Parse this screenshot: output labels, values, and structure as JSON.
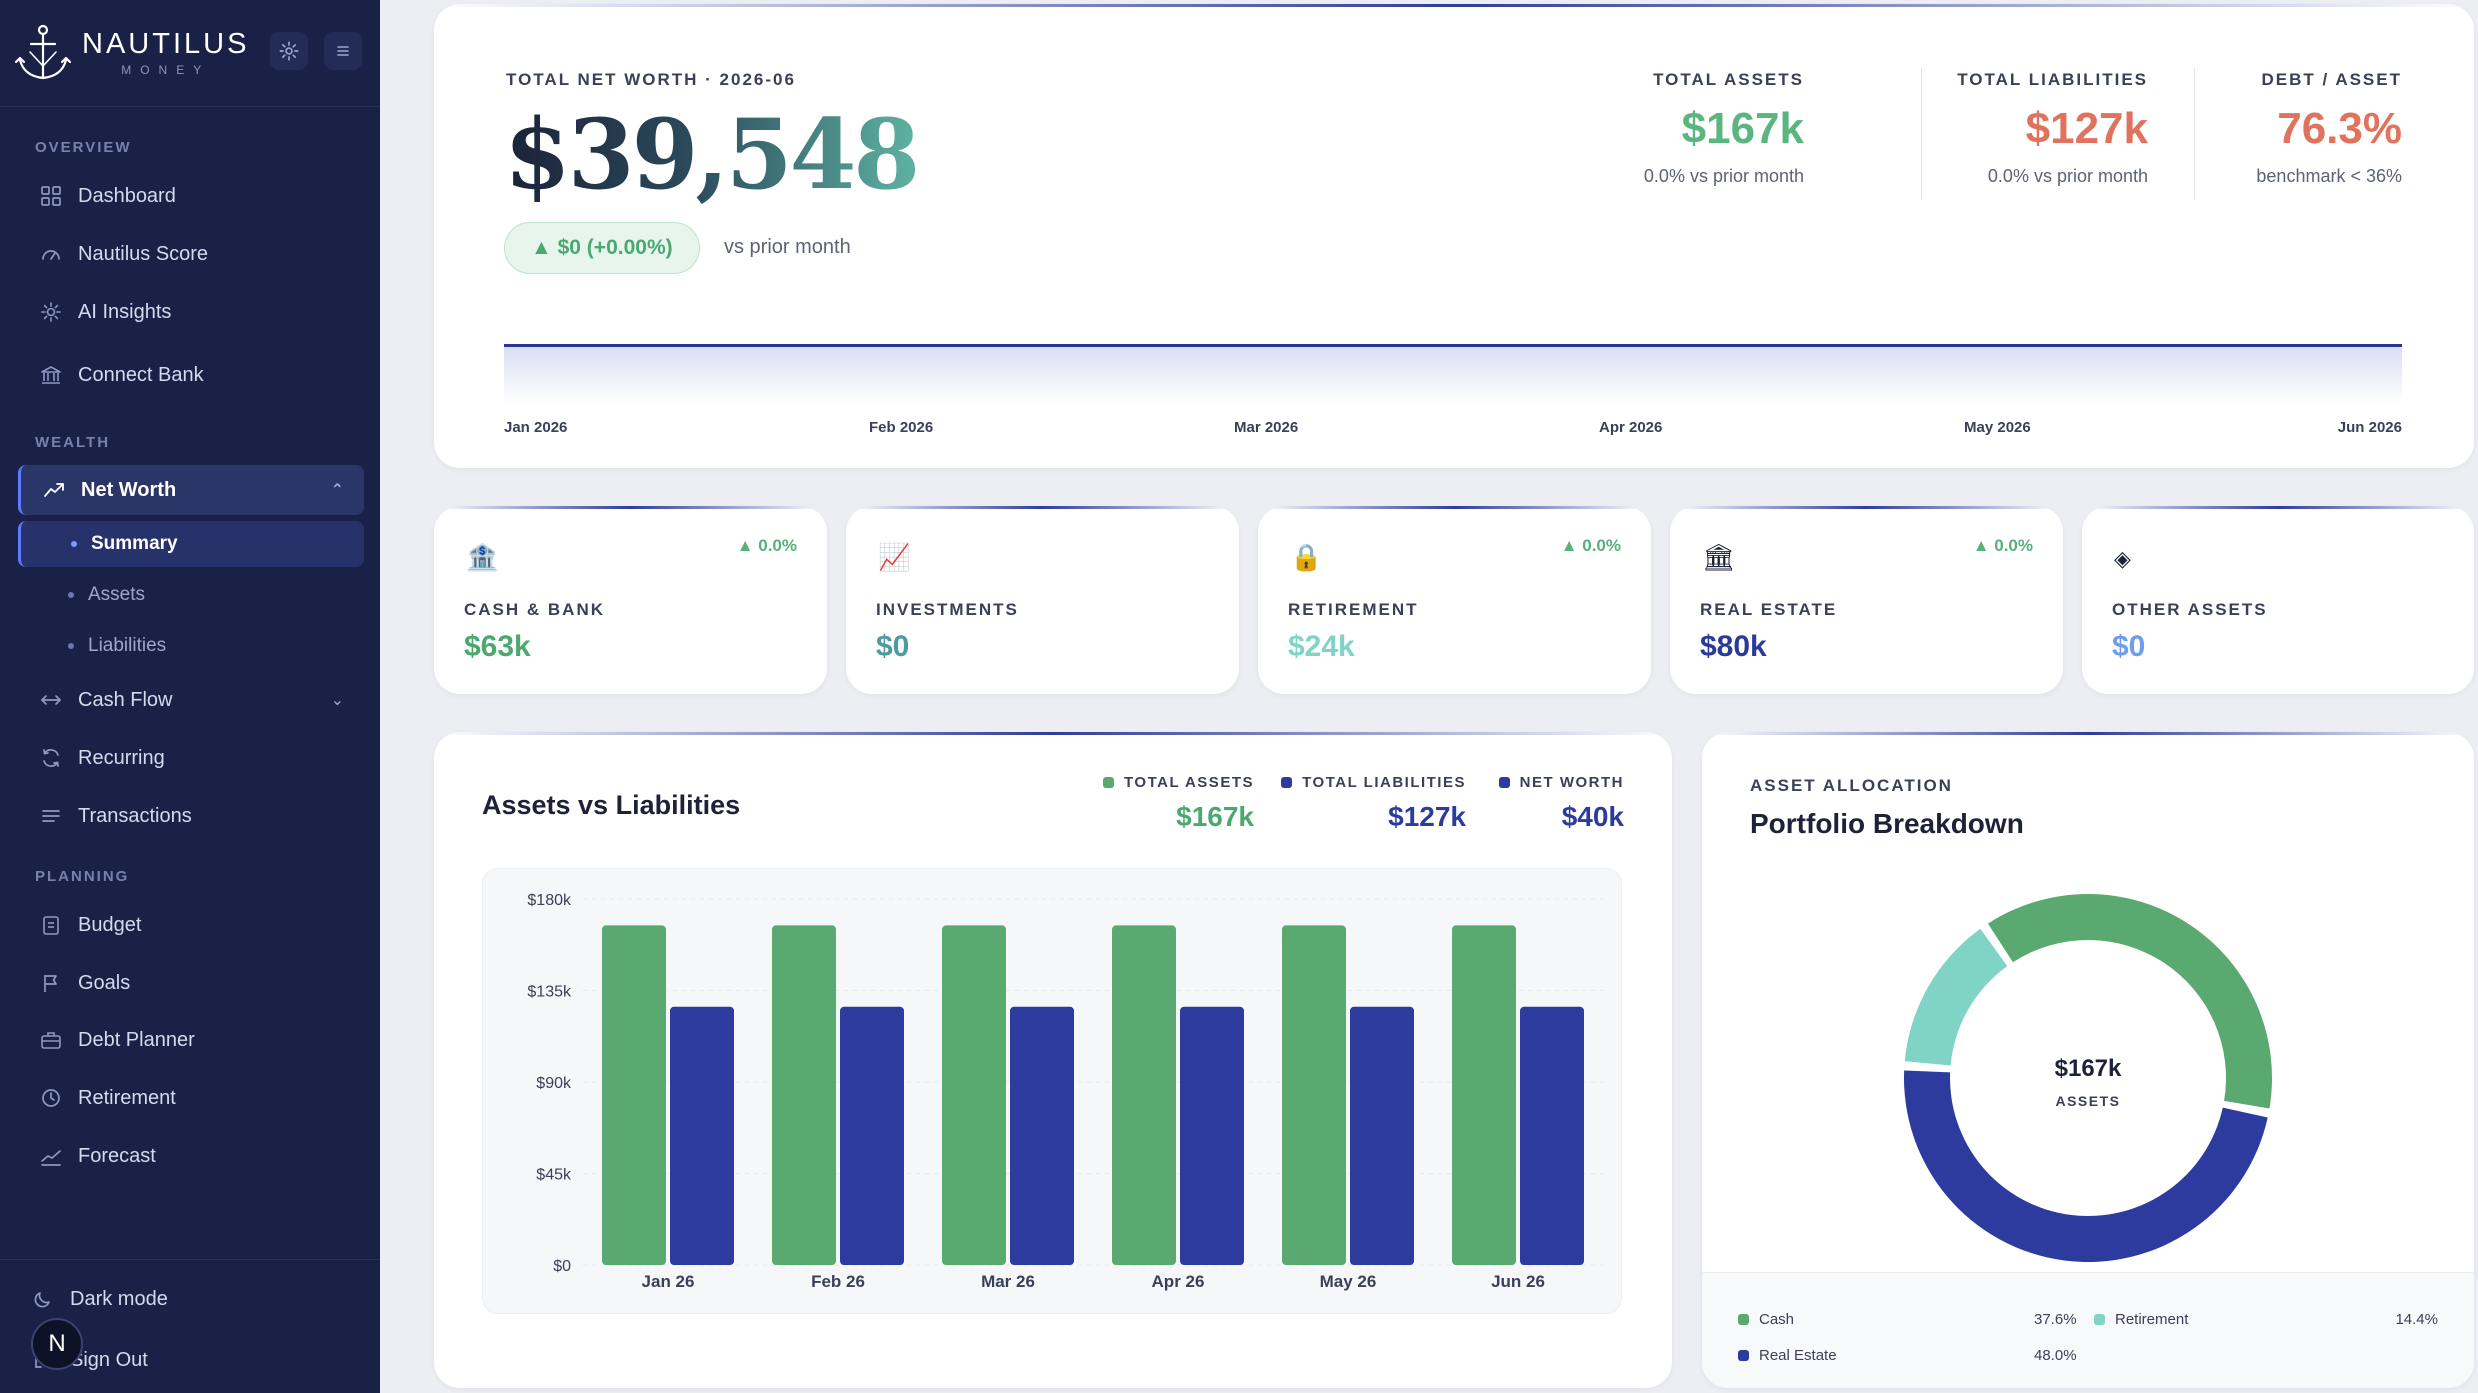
{
  "brand": {
    "name": "NAUTILUS",
    "sub": "MONEY"
  },
  "sidebar": {
    "sections": {
      "overview": "OVERVIEW",
      "wealth": "WEALTH",
      "planning": "PLANNING"
    },
    "items": {
      "dashboard": "Dashboard",
      "score": "Nautilus Score",
      "insights": "AI Insights",
      "connect": "Connect Bank",
      "networth": "Net Worth",
      "summary": "Summary",
      "assets": "Assets",
      "liabilities": "Liabilities",
      "cashflow": "Cash Flow",
      "recurring": "Recurring",
      "transactions": "Transactions",
      "budget": "Budget",
      "goals": "Goals",
      "debt": "Debt Planner",
      "retirement": "Retirement",
      "forecast": "Forecast"
    },
    "dark_mode": "Dark mode",
    "sign_out": "Sign Out",
    "avatar_initial": "N"
  },
  "hero": {
    "kicker": "TOTAL NET WORTH · 2026-06",
    "value": "$39,548",
    "change": "▲ $0 (+0.00%)",
    "vs": "vs prior month",
    "kpis": [
      {
        "label": "TOTAL ASSETS",
        "value": "$167k",
        "sub": "0.0% vs prior month",
        "color": "#5ab57f"
      },
      {
        "label": "TOTAL LIABILITIES",
        "value": "$127k",
        "sub": "0.0% vs prior month",
        "color": "#e0735d"
      },
      {
        "label": "DEBT / ASSET",
        "value": "76.3%",
        "sub": "benchmark < 36%",
        "color": "#e0735d"
      }
    ],
    "months": [
      "Jan 2026",
      "Feb 2026",
      "Mar 2026",
      "Apr 2026",
      "May 2026",
      "Jun 2026"
    ]
  },
  "categories": [
    {
      "icon": "🏦",
      "icon_name": "bank-icon",
      "label": "CASH & BANK",
      "value": "$63k",
      "change": "▲ 0.0%",
      "color": "#4aa870"
    },
    {
      "icon": "📈",
      "icon_name": "chart-icon",
      "label": "INVESTMENTS",
      "value": "$0",
      "change": "",
      "color": "#4f9a9f"
    },
    {
      "icon": "🔒",
      "icon_name": "lock-icon",
      "label": "RETIREMENT",
      "value": "$24k",
      "change": "▲ 0.0%",
      "color": "#7fd4c6"
    },
    {
      "icon": "🏛",
      "icon_name": "building-icon",
      "label": "REAL ESTATE",
      "value": "$80k",
      "change": "▲ 0.0%",
      "color": "#2a3a99"
    },
    {
      "icon": "◈",
      "icon_name": "diamond-icon",
      "label": "OTHER ASSETS",
      "value": "$0",
      "change": "",
      "color": "#6f9cec"
    }
  ],
  "chart_card": {
    "title": "Assets vs Liabilities",
    "legend": [
      {
        "label": "TOTAL ASSETS",
        "value": "$167k",
        "color": "#5aa970"
      },
      {
        "label": "TOTAL LIABILITIES",
        "value": "$127k",
        "color": "#2c3b9d"
      },
      {
        "label": "NET WORTH",
        "value": "$40k",
        "color": "#2c3b9d"
      }
    ]
  },
  "chart_data": [
    {
      "type": "bar",
      "title": "Assets vs Liabilities",
      "categories": [
        "Jan 26",
        "Feb 26",
        "Mar 26",
        "Apr 26",
        "May 26",
        "Jun 26"
      ],
      "series": [
        {
          "name": "Total Assets",
          "values": [
            167,
            167,
            167,
            167,
            167,
            167
          ],
          "color": "#5aa970"
        },
        {
          "name": "Total Liabilities",
          "values": [
            127,
            127,
            127,
            127,
            127,
            127
          ],
          "color": "#2c3b9d"
        }
      ],
      "yticks": [
        "$0",
        "$45k",
        "$90k",
        "$135k",
        "$180k"
      ],
      "ylim": [
        0,
        180
      ],
      "grid": true
    },
    {
      "type": "pie",
      "title": "Portfolio Breakdown",
      "center_value": "$167k",
      "center_label": "ASSETS",
      "slices": [
        {
          "name": "Cash",
          "value": 37.6,
          "label": "37.6%",
          "color": "#5aa970"
        },
        {
          "name": "Real Estate",
          "value": 48.0,
          "label": "48.0%",
          "color": "#2c3b9d"
        },
        {
          "name": "Retirement",
          "value": 14.4,
          "label": "14.4%",
          "color": "#7fd4c6"
        }
      ]
    }
  ],
  "allocation": {
    "kicker": "ASSET ALLOCATION",
    "title": "Portfolio Breakdown"
  }
}
